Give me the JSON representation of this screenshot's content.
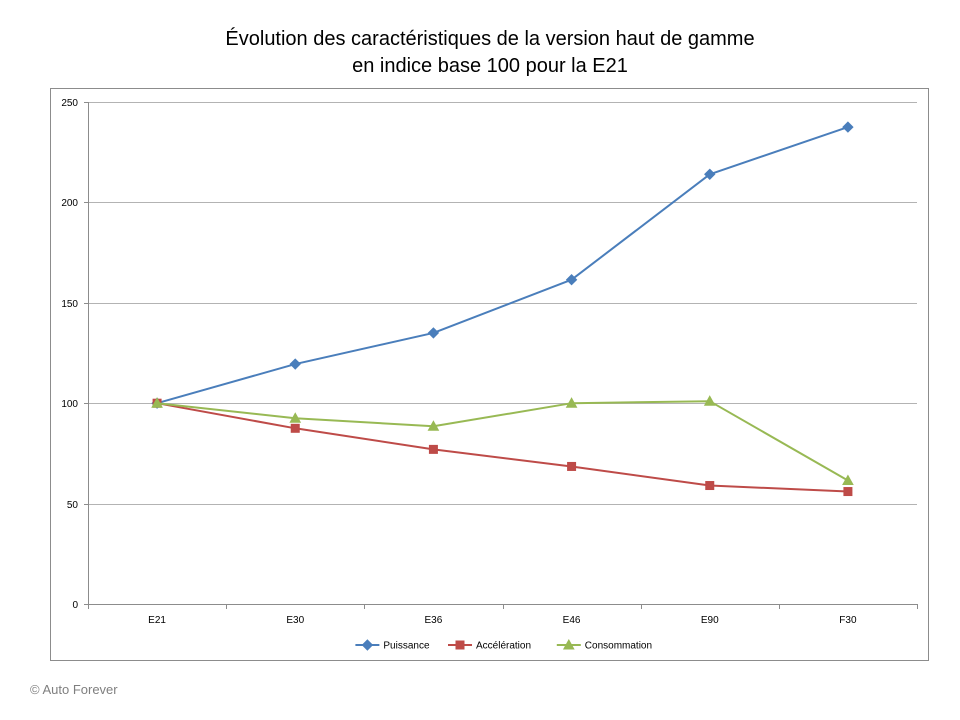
{
  "title_lines": [
    "Évolution des caractéristiques de la version haut de gamme",
    "en indice base 100 pour la E21"
  ],
  "copyright": "© Auto Forever",
  "chart_data": {
    "type": "line",
    "title": "Évolution des caractéristiques de la version haut de gamme en indice base 100 pour la E21",
    "xlabel": "",
    "ylabel": "",
    "categories": [
      "E21",
      "E30",
      "E36",
      "E46",
      "E90",
      "F30"
    ],
    "ylim": [
      0,
      250
    ],
    "yticks": [
      0,
      50,
      100,
      150,
      200,
      250
    ],
    "grid": true,
    "legend_position": "bottom",
    "series": [
      {
        "name": "Puissance",
        "values": [
          100,
          119.5,
          135,
          161.5,
          214,
          237.5
        ],
        "color": "#4a7ebb",
        "marker": "diamond"
      },
      {
        "name": "Accélération",
        "values": [
          100,
          87.5,
          77,
          68.5,
          59,
          56
        ],
        "color": "#be4b48",
        "marker": "square"
      },
      {
        "name": "Consommation",
        "values": [
          100,
          92.5,
          88.5,
          100,
          101,
          61.5
        ],
        "color": "#98b954",
        "marker": "triangle"
      }
    ]
  }
}
